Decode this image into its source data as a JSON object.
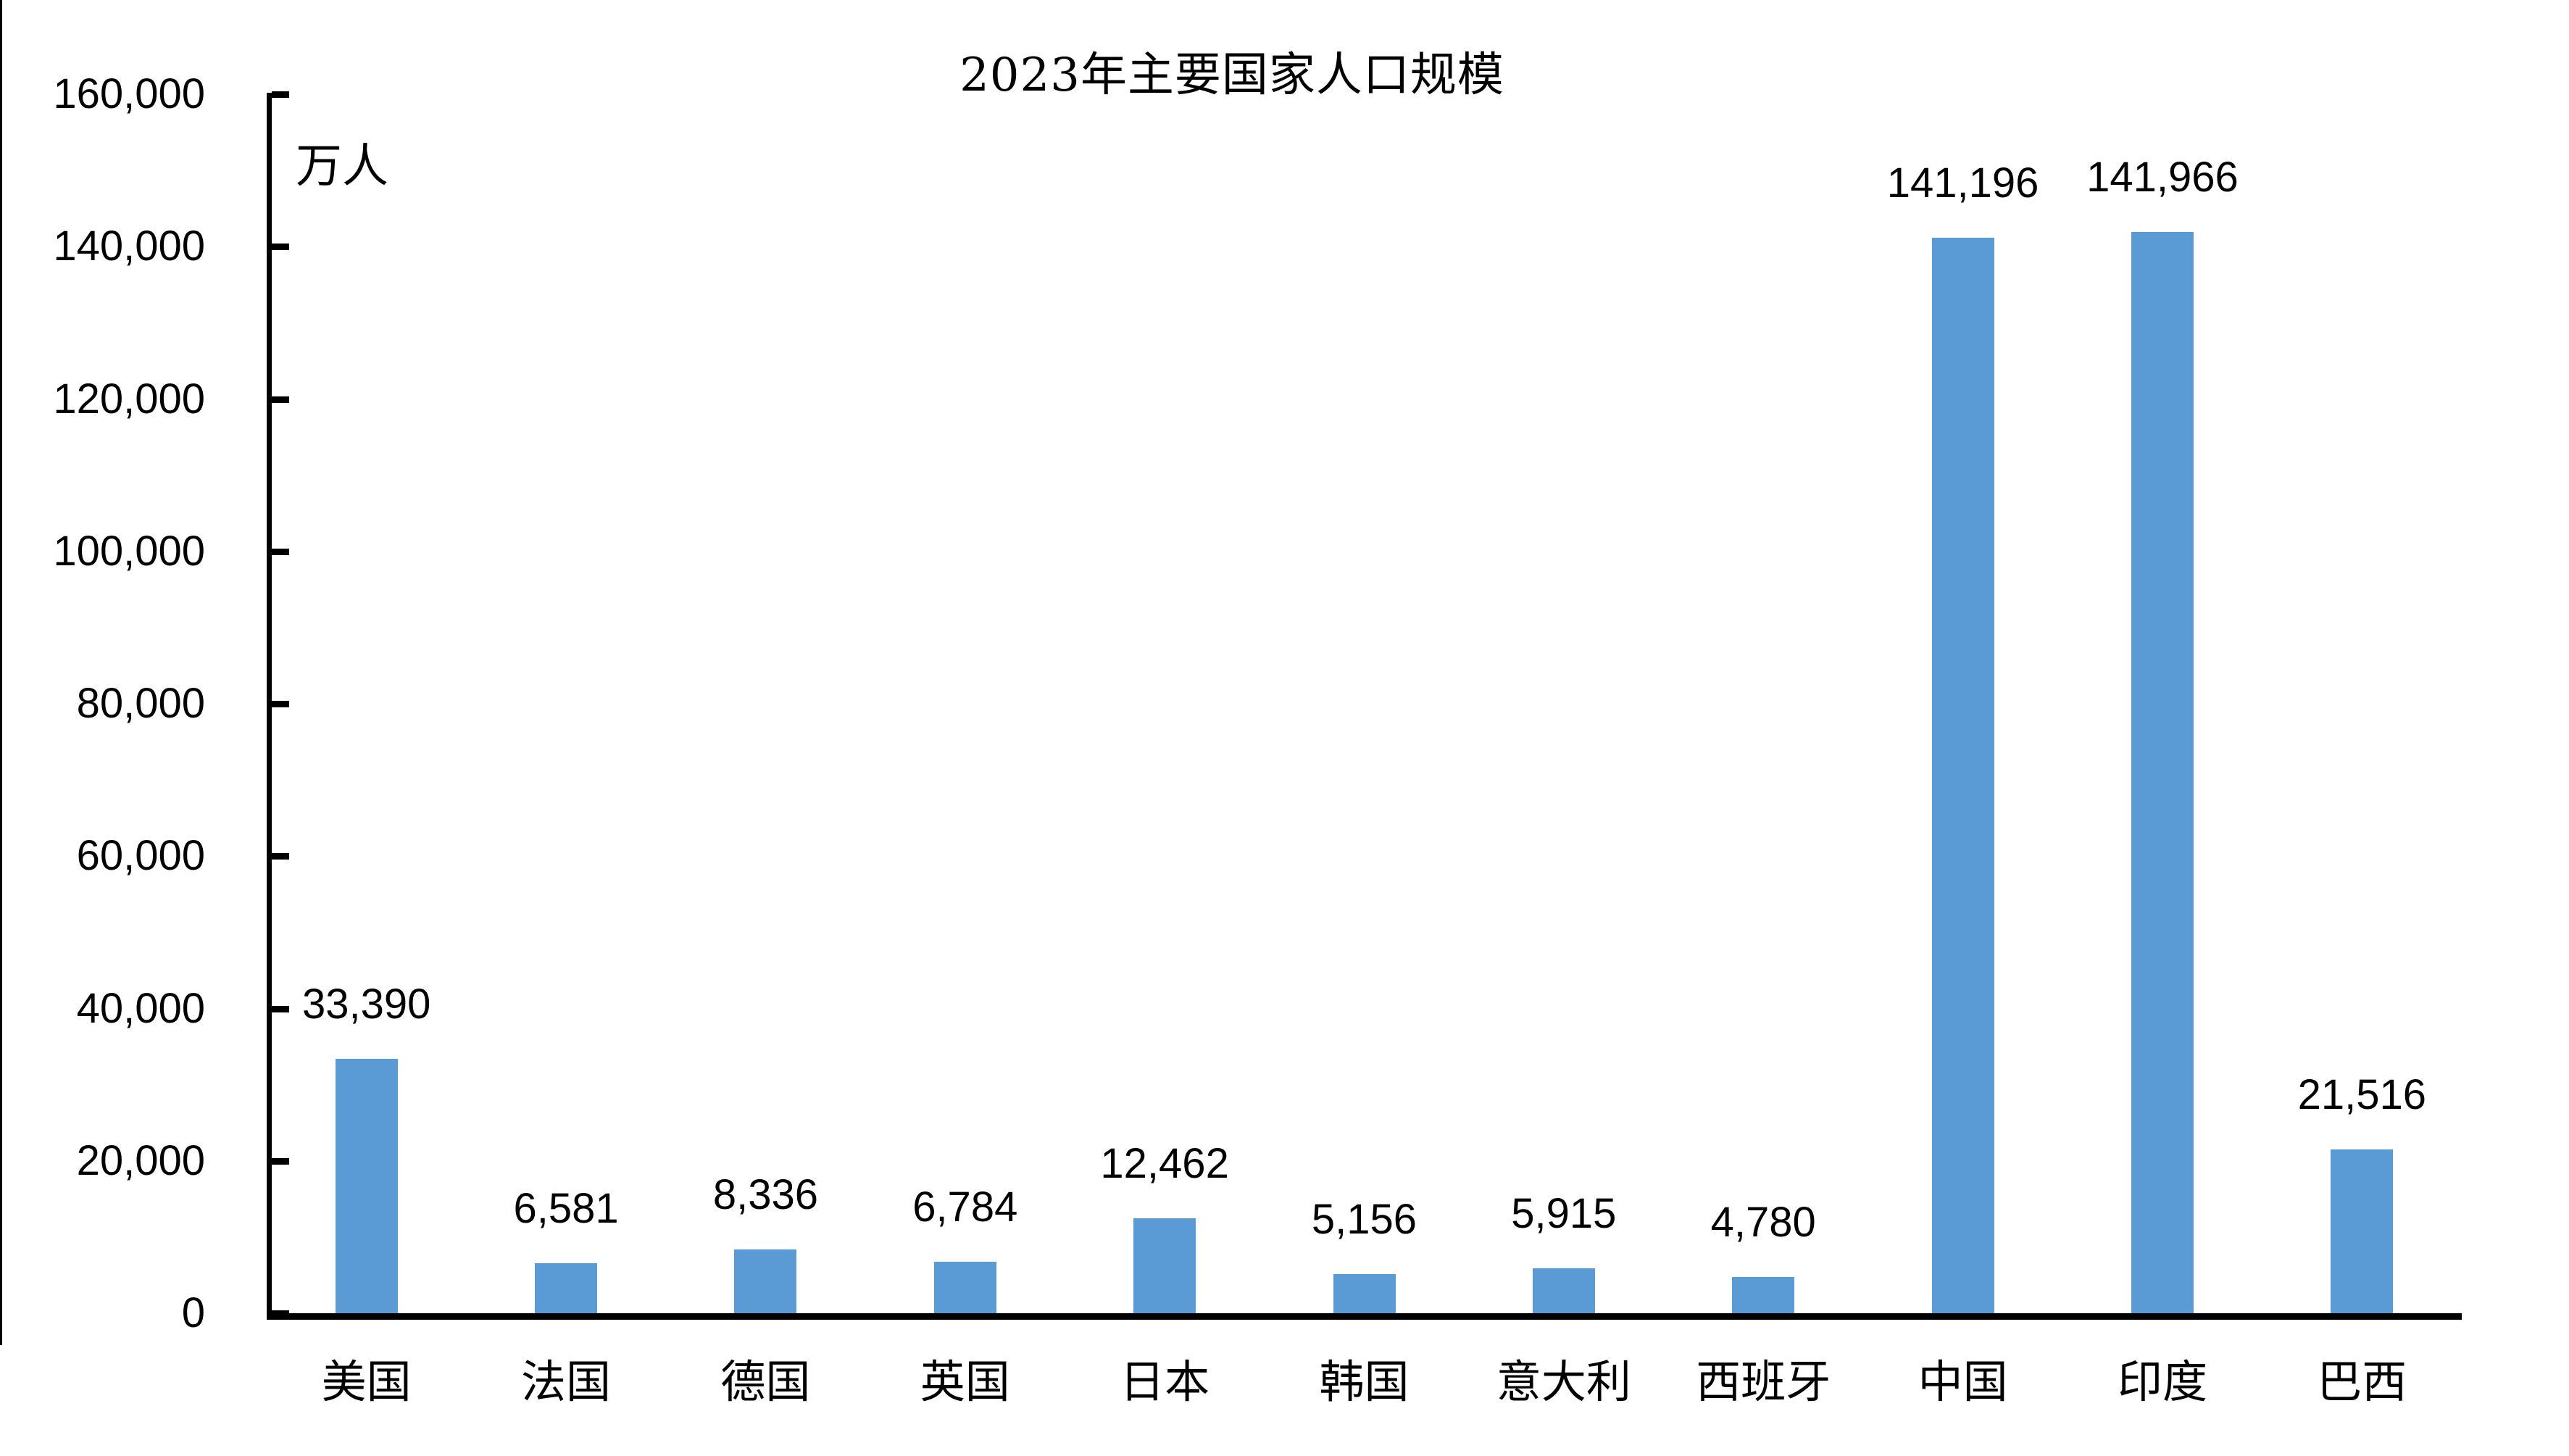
{
  "chart_data": {
    "type": "bar",
    "title": "2023年主要国家人口规模",
    "unit_label": "万人",
    "categories": [
      "美国",
      "法国",
      "德国",
      "英国",
      "日本",
      "韩国",
      "意大利",
      "西班牙",
      "中国",
      "印度",
      "巴西"
    ],
    "values": [
      33390,
      6581,
      8336,
      6784,
      12462,
      5156,
      5915,
      4780,
      141196,
      141966,
      21516
    ],
    "value_labels": [
      "33,390",
      "6,581",
      "8,336",
      "6,784",
      "12,462",
      "5,156",
      "5,915",
      "4,780",
      "141,196",
      "141,966",
      "21,516"
    ],
    "xlabel": "",
    "ylabel": "万人",
    "ylim": [
      0,
      160000
    ],
    "y_tick_interval": 20000,
    "y_tick_labels": [
      "0",
      "20,000",
      "40,000",
      "60,000",
      "80,000",
      "100,000",
      "120,000",
      "140,000",
      "160,000"
    ],
    "y_tick_values": [
      0,
      20000,
      40000,
      60000,
      80000,
      100000,
      120000,
      140000,
      160000
    ],
    "grid": false,
    "legend": "none",
    "bar_color": "#5B9BD5",
    "text_color": "#000000",
    "background_color": "#ffffff"
  }
}
